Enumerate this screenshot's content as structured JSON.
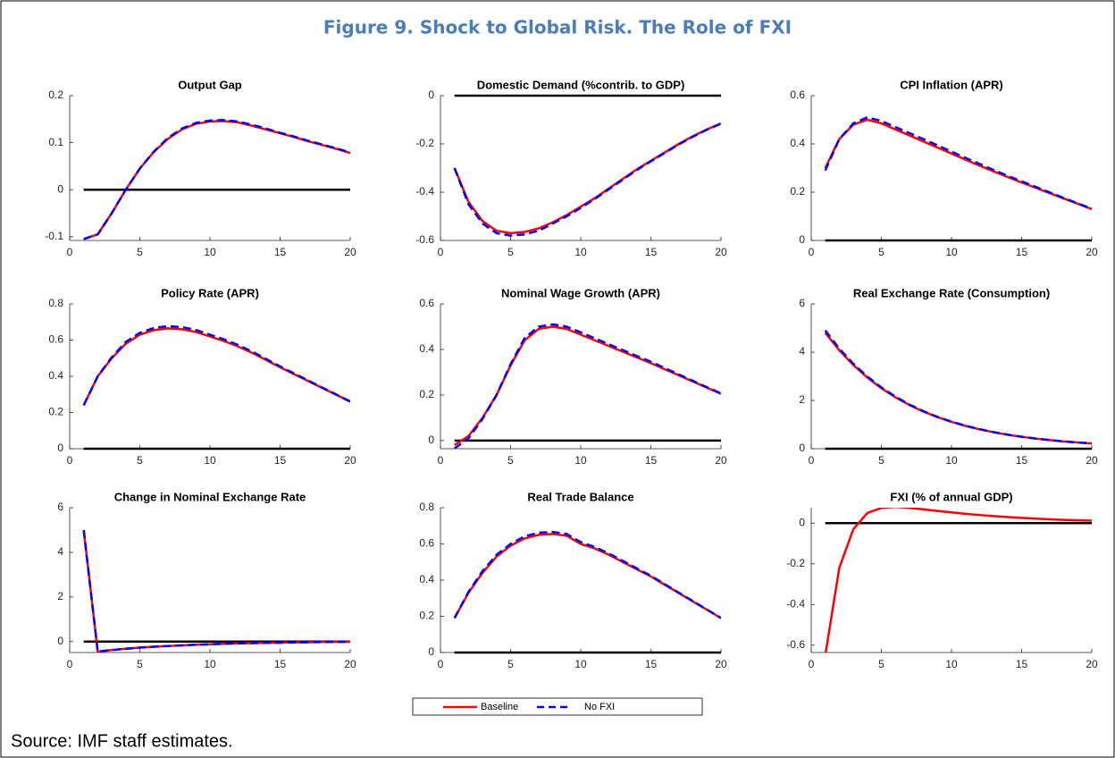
{
  "title": "Figure 9. Shock to Global Risk. The Role of FXI",
  "source": "Source: IMF staff estimates.",
  "chart_data": [
    {
      "type": "line",
      "title": "Output Gap",
      "x": [
        1,
        2,
        3,
        4,
        5,
        6,
        7,
        8,
        9,
        10,
        11,
        12,
        13,
        14,
        15,
        16,
        17,
        18,
        19,
        20
      ],
      "xlim": [
        0,
        20
      ],
      "xticks": [
        0,
        5,
        10,
        15,
        20
      ],
      "ylim": [
        -0.108,
        0.2
      ],
      "yticks": [
        -0.1,
        0,
        0.1,
        0.2
      ],
      "series": [
        {
          "name": "Baseline",
          "color": "#ff0000",
          "linestyle": "solid",
          "values": [
            -0.105,
            -0.095,
            -0.05,
            0.0,
            0.045,
            0.08,
            0.108,
            0.128,
            0.14,
            0.145,
            0.146,
            0.143,
            0.136,
            0.128,
            0.12,
            0.112,
            0.103,
            0.095,
            0.087,
            0.078
          ]
        },
        {
          "name": "No FXI",
          "color": "#0000ff",
          "linestyle": "dashed",
          "values": [
            -0.105,
            -0.095,
            -0.05,
            0.0,
            0.045,
            0.081,
            0.11,
            0.13,
            0.142,
            0.147,
            0.148,
            0.145,
            0.138,
            0.13,
            0.121,
            0.113,
            0.104,
            0.096,
            0.088,
            0.079
          ]
        }
      ]
    },
    {
      "type": "line",
      "title": "Domestic Demand (%contrib. to GDP)",
      "x": [
        1,
        2,
        3,
        4,
        5,
        6,
        7,
        8,
        9,
        10,
        11,
        12,
        13,
        14,
        15,
        16,
        17,
        18,
        19,
        20
      ],
      "xlim": [
        0,
        20
      ],
      "xticks": [
        0,
        5,
        10,
        15,
        20
      ],
      "ylim": [
        -0.6,
        0
      ],
      "yticks": [
        -0.6,
        -0.4,
        -0.2,
        0
      ],
      "series": [
        {
          "name": "Baseline",
          "color": "#ff0000",
          "linestyle": "solid",
          "values": [
            -0.3,
            -0.44,
            -0.52,
            -0.56,
            -0.57,
            -0.565,
            -0.55,
            -0.525,
            -0.495,
            -0.46,
            -0.425,
            -0.385,
            -0.345,
            -0.305,
            -0.27,
            -0.235,
            -0.2,
            -0.168,
            -0.14,
            -0.115
          ]
        },
        {
          "name": "No FXI",
          "color": "#0000ff",
          "linestyle": "dashed",
          "values": [
            -0.3,
            -0.45,
            -0.53,
            -0.57,
            -0.58,
            -0.575,
            -0.56,
            -0.53,
            -0.5,
            -0.465,
            -0.428,
            -0.388,
            -0.348,
            -0.308,
            -0.272,
            -0.237,
            -0.202,
            -0.17,
            -0.141,
            -0.116
          ]
        }
      ]
    },
    {
      "type": "line",
      "title": "CPI Inflation (APR)",
      "x": [
        1,
        2,
        3,
        4,
        5,
        6,
        7,
        8,
        9,
        10,
        11,
        12,
        13,
        14,
        15,
        16,
        17,
        18,
        19,
        20
      ],
      "xlim": [
        0,
        20
      ],
      "xticks": [
        0,
        5,
        10,
        15,
        20
      ],
      "ylim": [
        0,
        0.6
      ],
      "yticks": [
        0,
        0.2,
        0.4,
        0.6
      ],
      "series": [
        {
          "name": "Baseline",
          "color": "#ff0000",
          "linestyle": "solid",
          "values": [
            0.3,
            0.42,
            0.48,
            0.5,
            0.485,
            0.46,
            0.435,
            0.41,
            0.385,
            0.36,
            0.335,
            0.31,
            0.286,
            0.263,
            0.24,
            0.218,
            0.196,
            0.174,
            0.152,
            0.13
          ]
        },
        {
          "name": "No FXI",
          "color": "#0000ff",
          "linestyle": "dashed",
          "values": [
            0.29,
            0.42,
            0.485,
            0.51,
            0.495,
            0.47,
            0.445,
            0.42,
            0.394,
            0.368,
            0.342,
            0.317,
            0.292,
            0.268,
            0.245,
            0.222,
            0.199,
            0.176,
            0.154,
            0.131
          ]
        }
      ]
    },
    {
      "type": "line",
      "title": "Policy Rate (APR)",
      "x": [
        1,
        2,
        3,
        4,
        5,
        6,
        7,
        8,
        9,
        10,
        11,
        12,
        13,
        14,
        15,
        16,
        17,
        18,
        19,
        20
      ],
      "xlim": [
        0,
        20
      ],
      "xticks": [
        0,
        5,
        10,
        15,
        20
      ],
      "ylim": [
        0,
        0.8
      ],
      "yticks": [
        0,
        0.2,
        0.4,
        0.6,
        0.8
      ],
      "series": [
        {
          "name": "Baseline",
          "color": "#ff0000",
          "linestyle": "solid",
          "values": [
            0.24,
            0.4,
            0.5,
            0.58,
            0.63,
            0.655,
            0.665,
            0.66,
            0.645,
            0.62,
            0.595,
            0.565,
            0.53,
            0.49,
            0.45,
            0.412,
            0.374,
            0.336,
            0.298,
            0.26
          ]
        },
        {
          "name": "No FXI",
          "color": "#0000ff",
          "linestyle": "dashed",
          "values": [
            0.24,
            0.4,
            0.505,
            0.59,
            0.64,
            0.667,
            0.677,
            0.672,
            0.656,
            0.63,
            0.604,
            0.573,
            0.537,
            0.496,
            0.455,
            0.416,
            0.377,
            0.338,
            0.3,
            0.261
          ]
        }
      ]
    },
    {
      "type": "line",
      "title": "Nominal Wage Growth (APR)",
      "x": [
        1,
        2,
        3,
        4,
        5,
        6,
        7,
        8,
        9,
        10,
        11,
        12,
        13,
        14,
        15,
        16,
        17,
        18,
        19,
        20
      ],
      "xlim": [
        0,
        20
      ],
      "xticks": [
        0,
        5,
        10,
        15,
        20
      ],
      "ylim": [
        -0.036,
        0.6
      ],
      "yticks": [
        0,
        0.2,
        0.4,
        0.6
      ],
      "series": [
        {
          "name": "Baseline",
          "color": "#ff0000",
          "linestyle": "solid",
          "values": [
            -0.02,
            0.02,
            0.1,
            0.2,
            0.33,
            0.44,
            0.49,
            0.5,
            0.49,
            0.465,
            0.44,
            0.415,
            0.39,
            0.365,
            0.34,
            0.313,
            0.286,
            0.259,
            0.232,
            0.205
          ]
        },
        {
          "name": "No FXI",
          "color": "#0000ff",
          "linestyle": "dashed",
          "values": [
            -0.035,
            0.01,
            0.095,
            0.2,
            0.335,
            0.45,
            0.5,
            0.51,
            0.5,
            0.475,
            0.449,
            0.423,
            0.397,
            0.371,
            0.346,
            0.318,
            0.29,
            0.262,
            0.234,
            0.207
          ]
        }
      ]
    },
    {
      "type": "line",
      "title": "Real Exchange Rate (Consumption)",
      "x": [
        1,
        2,
        3,
        4,
        5,
        6,
        7,
        8,
        9,
        10,
        11,
        12,
        13,
        14,
        15,
        16,
        17,
        18,
        19,
        20
      ],
      "xlim": [
        0,
        20
      ],
      "xticks": [
        0,
        5,
        10,
        15,
        20
      ],
      "ylim": [
        0,
        6
      ],
      "yticks": [
        0,
        2,
        4,
        6
      ],
      "series": [
        {
          "name": "Baseline",
          "color": "#ff0000",
          "linestyle": "solid",
          "values": [
            4.8,
            4.08,
            3.468,
            2.948,
            2.506,
            2.13,
            1.81,
            1.539,
            1.308,
            1.112,
            0.945,
            0.803,
            0.683,
            0.58,
            0.493,
            0.419,
            0.356,
            0.303,
            0.257,
            0.219
          ]
        },
        {
          "name": "No FXI",
          "color": "#0000ff",
          "linestyle": "dashed",
          "values": [
            4.9,
            4.15,
            3.52,
            2.99,
            2.54,
            2.16,
            1.83,
            1.555,
            1.32,
            1.122,
            0.953,
            0.81,
            0.688,
            0.584,
            0.496,
            0.421,
            0.358,
            0.304,
            0.258,
            0.22
          ]
        }
      ]
    },
    {
      "type": "line",
      "title": "Change in Nominal Exchange Rate",
      "x": [
        1,
        2,
        3,
        4,
        5,
        6,
        7,
        8,
        9,
        10,
        11,
        12,
        13,
        14,
        15,
        16,
        17,
        18,
        19,
        20
      ],
      "xlim": [
        0,
        20
      ],
      "xticks": [
        0,
        5,
        10,
        15,
        20
      ],
      "ylim": [
        -0.49,
        6
      ],
      "yticks": [
        0,
        2,
        4,
        6
      ],
      "series": [
        {
          "name": "Baseline",
          "color": "#ff0000",
          "linestyle": "solid",
          "values": [
            5,
            -0.45,
            -0.38,
            -0.32,
            -0.27,
            -0.23,
            -0.2,
            -0.17,
            -0.14,
            -0.12,
            -0.1,
            -0.08,
            -0.07,
            -0.06,
            -0.05,
            -0.04,
            -0.03,
            -0.02,
            -0.015,
            -0.01
          ]
        },
        {
          "name": "No FXI",
          "color": "#0000ff",
          "linestyle": "dashed",
          "values": [
            5,
            -0.45,
            -0.38,
            -0.32,
            -0.27,
            -0.23,
            -0.2,
            -0.17,
            -0.14,
            -0.12,
            -0.1,
            -0.08,
            -0.07,
            -0.06,
            -0.05,
            -0.04,
            -0.03,
            -0.02,
            -0.015,
            -0.01
          ]
        }
      ]
    },
    {
      "type": "line",
      "title": "Real Trade Balance",
      "x": [
        1,
        2,
        3,
        4,
        5,
        6,
        7,
        8,
        9,
        10,
        11,
        12,
        13,
        14,
        15,
        16,
        17,
        18,
        19,
        20
      ],
      "xlim": [
        0,
        20
      ],
      "xticks": [
        0,
        5,
        10,
        15,
        20
      ],
      "ylim": [
        0,
        0.8
      ],
      "yticks": [
        0,
        0.2,
        0.4,
        0.6,
        0.8
      ],
      "series": [
        {
          "name": "Baseline",
          "color": "#ff0000",
          "linestyle": "solid",
          "values": [
            0.19,
            0.33,
            0.44,
            0.53,
            0.59,
            0.63,
            0.65,
            0.655,
            0.645,
            0.6,
            0.575,
            0.54,
            0.5,
            0.46,
            0.42,
            0.374,
            0.328,
            0.282,
            0.236,
            0.19
          ]
        },
        {
          "name": "No FXI",
          "color": "#0000ff",
          "linestyle": "dashed",
          "values": [
            0.19,
            0.335,
            0.45,
            0.54,
            0.6,
            0.642,
            0.662,
            0.666,
            0.655,
            0.61,
            0.583,
            0.547,
            0.506,
            0.465,
            0.424,
            0.377,
            0.33,
            0.284,
            0.237,
            0.191
          ]
        }
      ]
    },
    {
      "type": "line",
      "title": "FXI (% of annual GDP)",
      "x": [
        1,
        2,
        3,
        4,
        5,
        6,
        7,
        8,
        9,
        10,
        11,
        12,
        13,
        14,
        15,
        16,
        17,
        18,
        19,
        20
      ],
      "xlim": [
        0,
        20
      ],
      "xticks": [
        0,
        5,
        10,
        15,
        20
      ],
      "ylim": [
        -0.636,
        0.076
      ],
      "yticks": [
        -0.6,
        -0.4,
        -0.2,
        0
      ],
      "series": [
        {
          "name": "Baseline",
          "color": "#ff0000",
          "linestyle": "solid",
          "values": [
            -0.65,
            -0.22,
            -0.03,
            0.05,
            0.075,
            0.08,
            0.075,
            0.068,
            0.06,
            0.053,
            0.046,
            0.04,
            0.035,
            0.03,
            0.026,
            0.022,
            0.019,
            0.016,
            0.014,
            0.012
          ]
        }
      ]
    }
  ]
}
